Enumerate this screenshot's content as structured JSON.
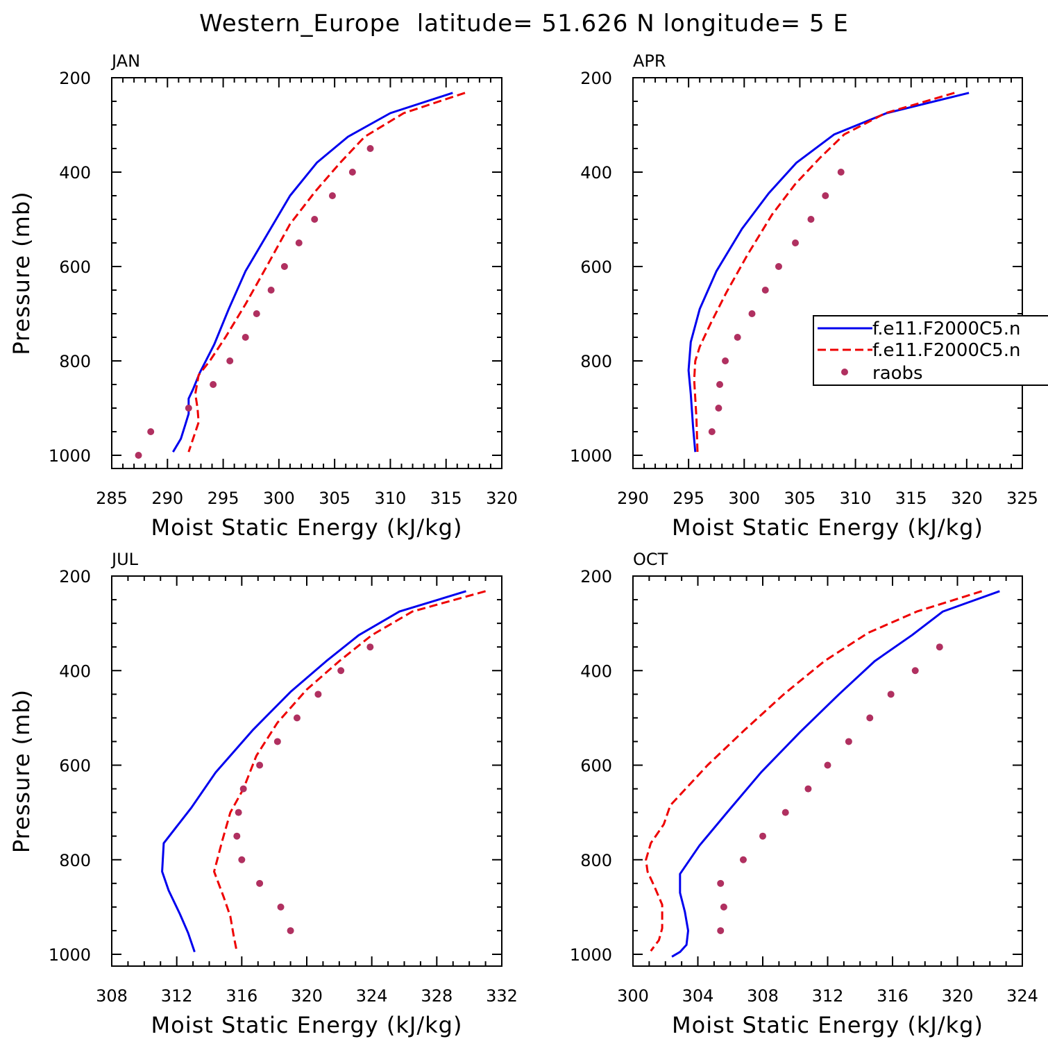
{
  "figure": {
    "title": "Western_Europe  latitude= 51.626 N longitude= 5 E"
  },
  "colors": {
    "model_a": "#0000ee",
    "model_b": "#ee0000",
    "raobs": "#b03060"
  },
  "legend": {
    "entries": [
      "f.e11.F2000C5.n",
      "f.e11.F2000C5.n",
      "raobs"
    ]
  },
  "chart_data": [
    {
      "type": "line",
      "title": "JAN",
      "xlabel": "Moist Static Energy (kJ/kg)",
      "ylabel": "Pressure (mb)",
      "xlim": [
        285,
        320
      ],
      "xticks": [
        285,
        290,
        295,
        300,
        305,
        310,
        315,
        320
      ],
      "ylim": [
        200,
        1000
      ],
      "yticks": [
        200,
        400,
        600,
        800,
        1000
      ],
      "y_inverted": true,
      "series": [
        {
          "name": "f.e11.F2000C5.n",
          "style": "solid",
          "x": [
            315.6,
            310.0,
            306.2,
            303.4,
            301.0,
            299.0,
            297.0,
            295.5,
            294.2,
            292.9,
            292.3,
            291.9,
            291.9,
            291.6,
            291.2,
            290.7,
            290.5
          ],
          "y": [
            232,
            275,
            325,
            380,
            450,
            530,
            610,
            690,
            765,
            825,
            860,
            880,
            912,
            935,
            965,
            985,
            993
          ]
        },
        {
          "name": "f.e11.F2000C5.n",
          "style": "dashed",
          "x": [
            316.7,
            311.2,
            307.7,
            305.5,
            303.3,
            301.0,
            298.9,
            297.0,
            295.2,
            293.8,
            292.8,
            292.5,
            292.7,
            292.8,
            292.3,
            291.9
          ],
          "y": [
            232,
            275,
            325,
            380,
            440,
            510,
            600,
            680,
            750,
            800,
            830,
            870,
            900,
            930,
            965,
            993
          ]
        },
        {
          "name": "raobs",
          "style": "dots",
          "x": [
            308.2,
            306.6,
            304.8,
            303.2,
            301.8,
            300.5,
            299.3,
            298.0,
            297.0,
            295.6,
            294.1,
            291.9,
            288.5,
            287.4
          ],
          "y": [
            350,
            400,
            450,
            500,
            550,
            600,
            650,
            700,
            750,
            800,
            850,
            900,
            950,
            1000
          ]
        }
      ]
    },
    {
      "type": "line",
      "title": "APR",
      "xlabel": "Moist Static Energy (kJ/kg)",
      "ylabel": "",
      "xlim": [
        290,
        325
      ],
      "xticks": [
        290,
        295,
        300,
        305,
        310,
        315,
        320,
        325
      ],
      "ylim": [
        200,
        1000
      ],
      "yticks": [
        200,
        400,
        600,
        800,
        1000
      ],
      "y_inverted": true,
      "legend_position": "right",
      "series": [
        {
          "name": "f.e11.F2000C5.n",
          "style": "solid",
          "x": [
            320.2,
            312.8,
            308.1,
            304.7,
            302.2,
            299.8,
            297.5,
            296.0,
            295.2,
            295.0,
            295.2,
            295.4,
            295.6
          ],
          "y": [
            232,
            275,
            320,
            380,
            445,
            520,
            610,
            690,
            760,
            820,
            870,
            940,
            993
          ]
        },
        {
          "name": "f.e11.F2000C5.n",
          "style": "dashed",
          "x": [
            318.9,
            312.7,
            309.0,
            306.8,
            304.6,
            302.5,
            300.3,
            298.4,
            297.0,
            296.0,
            295.6,
            295.5,
            295.7,
            295.8
          ],
          "y": [
            232,
            275,
            320,
            370,
            425,
            490,
            575,
            655,
            720,
            770,
            800,
            840,
            920,
            993
          ]
        },
        {
          "name": "raobs",
          "style": "dots",
          "x": [
            308.7,
            307.3,
            306.0,
            304.6,
            303.1,
            301.9,
            300.7,
            299.4,
            298.3,
            297.8,
            297.7,
            297.1
          ],
          "y": [
            400,
            450,
            500,
            550,
            600,
            650,
            700,
            750,
            800,
            850,
            900,
            950
          ]
        }
      ]
    },
    {
      "type": "line",
      "title": "JUL",
      "xlabel": "Moist Static Energy (kJ/kg)",
      "ylabel": "Pressure (mb)",
      "xlim": [
        308,
        332
      ],
      "xticks": [
        308,
        312,
        316,
        320,
        324,
        328,
        332
      ],
      "ylim": [
        200,
        1000
      ],
      "yticks": [
        200,
        400,
        600,
        800,
        1000
      ],
      "y_inverted": true,
      "series": [
        {
          "name": "f.e11.F2000C5.n",
          "style": "solid",
          "x": [
            329.8,
            325.7,
            323.2,
            321.2,
            319.0,
            316.7,
            314.4,
            312.9,
            311.2,
            311.1,
            311.5,
            312.2,
            312.7,
            313.1
          ],
          "y": [
            232,
            275,
            325,
            380,
            445,
            525,
            615,
            690,
            765,
            825,
            865,
            915,
            955,
            995
          ]
        },
        {
          "name": "f.e11.F2000C5.n",
          "style": "dashed",
          "x": [
            331.0,
            326.5,
            324.0,
            322.0,
            320.0,
            318.2,
            316.9,
            316.1,
            315.3,
            314.8,
            314.3,
            314.9,
            315.3,
            315.5,
            315.7
          ],
          "y": [
            232,
            275,
            325,
            380,
            440,
            510,
            580,
            650,
            700,
            760,
            825,
            880,
            920,
            960,
            995
          ]
        },
        {
          "name": "raobs",
          "style": "dots",
          "x": [
            323.9,
            322.1,
            320.7,
            319.4,
            318.2,
            317.1,
            316.1,
            315.8,
            315.7,
            316.0,
            317.1,
            318.4,
            319.0
          ],
          "y": [
            350,
            400,
            450,
            500,
            550,
            600,
            650,
            700,
            750,
            800,
            850,
            900,
            950
          ]
        }
      ]
    },
    {
      "type": "line",
      "title": "OCT",
      "xlabel": "Moist Static Energy (kJ/kg)",
      "ylabel": "",
      "xlim": [
        300,
        324
      ],
      "xticks": [
        300,
        304,
        308,
        312,
        316,
        320,
        324
      ],
      "ylim": [
        200,
        1000
      ],
      "yticks": [
        200,
        400,
        600,
        800,
        1000
      ],
      "y_inverted": true,
      "series": [
        {
          "name": "f.e11.F2000C5.n",
          "style": "solid",
          "x": [
            322.6,
            319.1,
            317.2,
            314.9,
            312.7,
            310.3,
            307.9,
            305.8,
            304.1,
            302.9,
            302.9,
            303.2,
            303.4,
            303.3,
            302.9,
            302.4
          ],
          "y": [
            232,
            275,
            325,
            380,
            450,
            530,
            615,
            700,
            770,
            830,
            870,
            910,
            950,
            980,
            995,
            1005
          ]
        },
        {
          "name": "f.e11.F2000C5.n",
          "style": "dashed",
          "x": [
            321.5,
            317.5,
            314.5,
            311.8,
            309.3,
            306.9,
            304.6,
            302.3,
            301.9,
            301.1,
            300.8,
            300.9,
            301.3,
            301.8,
            301.8,
            301.6,
            301.1
          ],
          "y": [
            232,
            275,
            320,
            380,
            450,
            525,
            600,
            685,
            725,
            765,
            800,
            825,
            855,
            895,
            945,
            970,
            993
          ]
        },
        {
          "name": "raobs",
          "style": "dots",
          "x": [
            318.9,
            317.4,
            315.9,
            314.6,
            313.3,
            312.0,
            310.8,
            309.4,
            308.0,
            306.8,
            305.4,
            305.6,
            305.4
          ],
          "y": [
            350,
            400,
            450,
            500,
            550,
            600,
            650,
            700,
            750,
            800,
            850,
            900,
            950
          ]
        }
      ]
    }
  ]
}
